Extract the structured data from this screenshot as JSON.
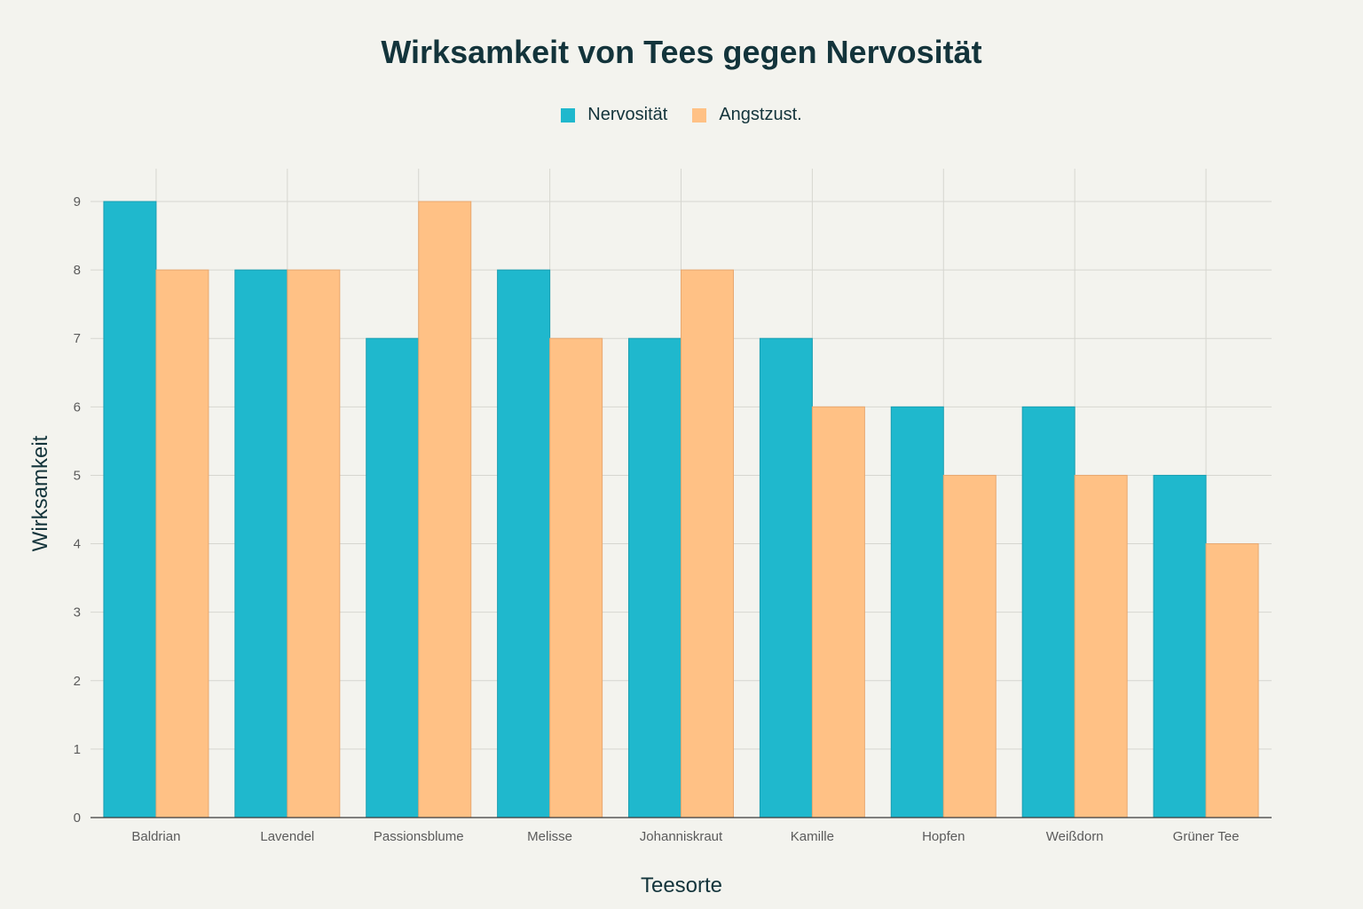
{
  "chart_data": {
    "type": "bar",
    "title": "Wirksamkeit von Tees gegen Nervosität",
    "xlabel": "Teesorte",
    "ylabel": "Wirksamkeit",
    "categories": [
      "Baldrian",
      "Lavendel",
      "Passionsblume",
      "Melisse",
      "Johanniskraut",
      "Kamille",
      "Hopfen",
      "Weißdorn",
      "Grüner Tee"
    ],
    "series": [
      {
        "name": "Nervosität",
        "color": "#1fb8cd",
        "values": [
          9,
          8,
          7,
          8,
          7,
          7,
          6,
          6,
          5
        ]
      },
      {
        "name": "Angstzust.",
        "color": "#ffc185",
        "values": [
          8,
          8,
          9,
          7,
          8,
          6,
          5,
          5,
          4
        ]
      }
    ],
    "ylim": [
      0,
      9
    ],
    "yticks": [
      0,
      1,
      2,
      3,
      4,
      5,
      6,
      7,
      8,
      9
    ],
    "grid": true,
    "legend_position": "top-center"
  }
}
